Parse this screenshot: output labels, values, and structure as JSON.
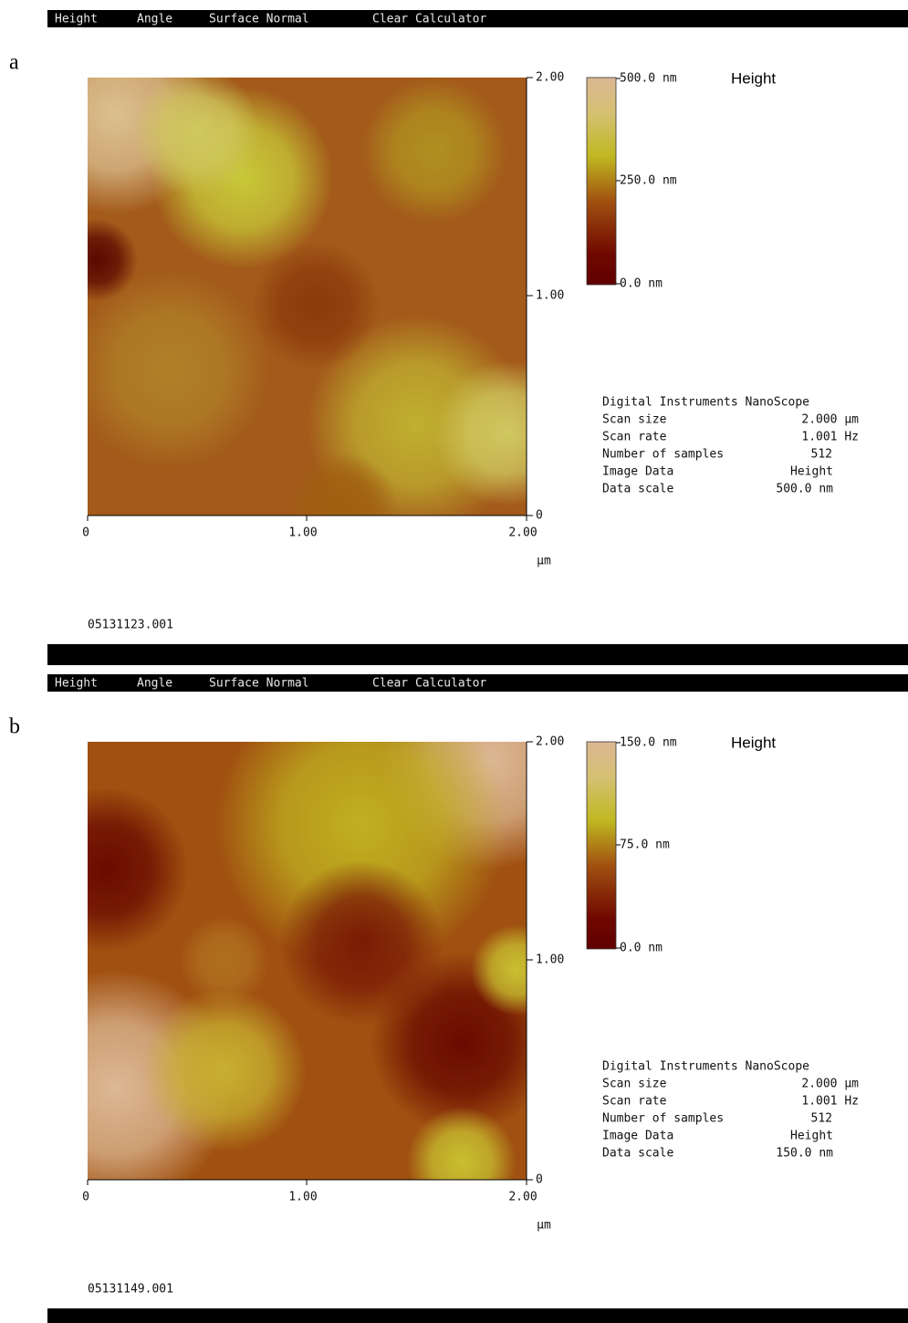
{
  "panels": [
    {
      "label": "a",
      "menu": [
        "Height",
        "Angle",
        "Surface Normal",
        "Clear Calculator"
      ],
      "y_ticks": [
        "2.00",
        "1.00",
        "0"
      ],
      "x_ticks": [
        "0",
        "1.00",
        "2.00"
      ],
      "x_unit": "µm",
      "colorbar_labels": [
        "500.0 nm",
        "250.0 nm",
        "0.0 nm"
      ],
      "channel": "Height",
      "info_header": "Digital Instruments NanoScope",
      "info": [
        [
          "Scan size",
          "2.000 µm"
        ],
        [
          "Scan rate",
          "1.001 Hz"
        ],
        [
          "Number of samples",
          "512"
        ],
        [
          "Image Data",
          "Height"
        ],
        [
          "Data scale",
          "500.0 nm"
        ]
      ],
      "filename": "05131123.001"
    },
    {
      "label": "b",
      "menu": [
        "Height",
        "Angle",
        "Surface Normal",
        "Clear Calculator"
      ],
      "y_ticks": [
        "2.00",
        "1.00",
        "0"
      ],
      "x_ticks": [
        "0",
        "1.00",
        "2.00"
      ],
      "x_unit": "µm",
      "colorbar_labels": [
        "150.0 nm",
        "75.0 nm",
        "0.0 nm"
      ],
      "channel": "Height",
      "info_header": "Digital Instruments NanoScope",
      "info": [
        [
          "Scan size",
          "2.000 µm"
        ],
        [
          "Scan rate",
          "1.001 Hz"
        ],
        [
          "Number of samples",
          "512"
        ],
        [
          "Image Data",
          "Height"
        ],
        [
          "Data scale",
          "150.0 nm"
        ]
      ],
      "filename": "05131149.001"
    }
  ]
}
